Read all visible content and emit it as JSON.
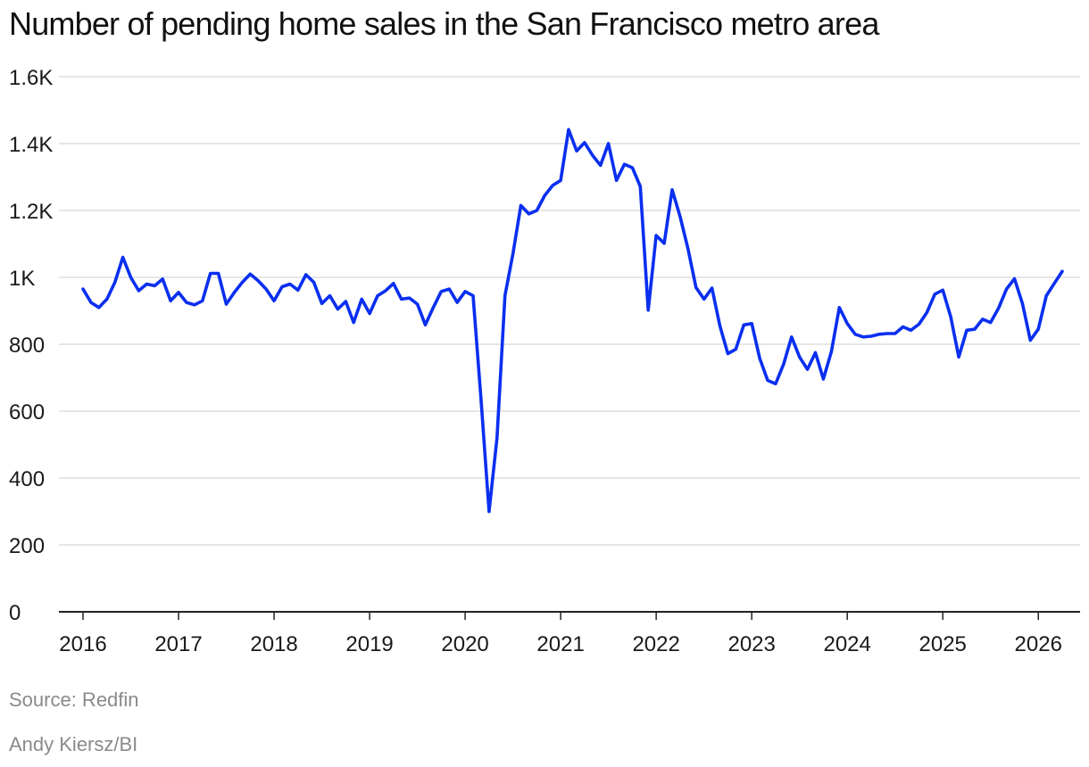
{
  "title": "Number of pending home sales in the San Francisco metro area",
  "source": "Source: Redfin",
  "credit": "Andy Kiersz/BI",
  "colors": {
    "line": "#0a2ff0",
    "grid": "#dddddd",
    "axis": "#222222"
  },
  "chart_data": {
    "type": "line",
    "title": "Number of pending home sales in the San Francisco metro area",
    "xlabel": "",
    "ylabel": "",
    "ylim": [
      0,
      1600
    ],
    "xlim": [
      "2016-01",
      "2026-04"
    ],
    "grid": true,
    "legend": "none",
    "y_ticks": [
      {
        "value": 0,
        "label": "0"
      },
      {
        "value": 200,
        "label": "200"
      },
      {
        "value": 400,
        "label": "400"
      },
      {
        "value": 600,
        "label": "600"
      },
      {
        "value": 800,
        "label": "800"
      },
      {
        "value": 1000,
        "label": "1K"
      },
      {
        "value": 1200,
        "label": "1.2K"
      },
      {
        "value": 1400,
        "label": "1.4K"
      },
      {
        "value": 1600,
        "label": "1.6K"
      }
    ],
    "x_ticks": [
      {
        "value": "2016-01",
        "label": "2016"
      },
      {
        "value": "2017-01",
        "label": "2017"
      },
      {
        "value": "2018-01",
        "label": "2018"
      },
      {
        "value": "2019-01",
        "label": "2019"
      },
      {
        "value": "2020-01",
        "label": "2020"
      },
      {
        "value": "2021-01",
        "label": "2021"
      },
      {
        "value": "2022-01",
        "label": "2022"
      },
      {
        "value": "2023-01",
        "label": "2023"
      },
      {
        "value": "2024-01",
        "label": "2024"
      },
      {
        "value": "2025-01",
        "label": "2025"
      },
      {
        "value": "2026-01",
        "label": "2026"
      }
    ],
    "series": [
      {
        "name": "",
        "points": [
          [
            "2016-01",
            965
          ],
          [
            "2016-02",
            925
          ],
          [
            "2016-03",
            910
          ],
          [
            "2016-04",
            935
          ],
          [
            "2016-05",
            985
          ],
          [
            "2016-06",
            1060
          ],
          [
            "2016-07",
            1000
          ],
          [
            "2016-08",
            960
          ],
          [
            "2016-09",
            980
          ],
          [
            "2016-10",
            975
          ],
          [
            "2016-11",
            995
          ],
          [
            "2016-12",
            930
          ],
          [
            "2017-01",
            955
          ],
          [
            "2017-02",
            925
          ],
          [
            "2017-03",
            918
          ],
          [
            "2017-04",
            930
          ],
          [
            "2017-05",
            1012
          ],
          [
            "2017-06",
            1012
          ],
          [
            "2017-07",
            920
          ],
          [
            "2017-08",
            955
          ],
          [
            "2017-09",
            985
          ],
          [
            "2017-10",
            1010
          ],
          [
            "2017-11",
            990
          ],
          [
            "2017-12",
            965
          ],
          [
            "2018-01",
            930
          ],
          [
            "2018-02",
            972
          ],
          [
            "2018-03",
            980
          ],
          [
            "2018-04",
            962
          ],
          [
            "2018-05",
            1008
          ],
          [
            "2018-06",
            985
          ],
          [
            "2018-07",
            922
          ],
          [
            "2018-08",
            945
          ],
          [
            "2018-09",
            905
          ],
          [
            "2018-10",
            928
          ],
          [
            "2018-11",
            865
          ],
          [
            "2018-12",
            935
          ],
          [
            "2019-01",
            892
          ],
          [
            "2019-02",
            945
          ],
          [
            "2019-03",
            960
          ],
          [
            "2019-04",
            982
          ],
          [
            "2019-05",
            935
          ],
          [
            "2019-06",
            938
          ],
          [
            "2019-07",
            920
          ],
          [
            "2019-08",
            858
          ],
          [
            "2019-09",
            910
          ],
          [
            "2019-10",
            958
          ],
          [
            "2019-11",
            965
          ],
          [
            "2019-12",
            925
          ],
          [
            "2020-01",
            958
          ],
          [
            "2020-02",
            945
          ],
          [
            "2020-03",
            635
          ],
          [
            "2020-04",
            300
          ],
          [
            "2020-05",
            520
          ],
          [
            "2020-06",
            945
          ],
          [
            "2020-07",
            1070
          ],
          [
            "2020-08",
            1215
          ],
          [
            "2020-09",
            1190
          ],
          [
            "2020-10",
            1200
          ],
          [
            "2020-11",
            1245
          ],
          [
            "2020-12",
            1275
          ],
          [
            "2021-01",
            1290
          ],
          [
            "2021-02",
            1442
          ],
          [
            "2021-03",
            1378
          ],
          [
            "2021-04",
            1403
          ],
          [
            "2021-05",
            1365
          ],
          [
            "2021-06",
            1335
          ],
          [
            "2021-07",
            1400
          ],
          [
            "2021-08",
            1290
          ],
          [
            "2021-09",
            1338
          ],
          [
            "2021-10",
            1328
          ],
          [
            "2021-11",
            1272
          ],
          [
            "2021-12",
            902
          ],
          [
            "2022-01",
            1125
          ],
          [
            "2022-02",
            1102
          ],
          [
            "2022-03",
            1262
          ],
          [
            "2022-04",
            1182
          ],
          [
            "2022-05",
            1085
          ],
          [
            "2022-06",
            970
          ],
          [
            "2022-07",
            935
          ],
          [
            "2022-08",
            968
          ],
          [
            "2022-09",
            855
          ],
          [
            "2022-10",
            772
          ],
          [
            "2022-11",
            785
          ],
          [
            "2022-12",
            858
          ],
          [
            "2023-01",
            862
          ],
          [
            "2023-02",
            758
          ],
          [
            "2023-03",
            692
          ],
          [
            "2023-04",
            682
          ],
          [
            "2023-05",
            740
          ],
          [
            "2023-06",
            822
          ],
          [
            "2023-07",
            762
          ],
          [
            "2023-08",
            725
          ],
          [
            "2023-09",
            775
          ],
          [
            "2023-10",
            696
          ],
          [
            "2023-11",
            778
          ],
          [
            "2023-12",
            910
          ],
          [
            "2024-01",
            862
          ],
          [
            "2024-02",
            830
          ],
          [
            "2024-03",
            822
          ],
          [
            "2024-04",
            824
          ],
          [
            "2024-05",
            830
          ],
          [
            "2024-06",
            832
          ],
          [
            "2024-07",
            832
          ],
          [
            "2024-08",
            852
          ],
          [
            "2024-09",
            842
          ],
          [
            "2024-10",
            860
          ],
          [
            "2024-11",
            895
          ],
          [
            "2024-12",
            950
          ],
          [
            "2025-01",
            962
          ],
          [
            "2025-02",
            882
          ],
          [
            "2025-03",
            762
          ],
          [
            "2025-04",
            842
          ],
          [
            "2025-05",
            845
          ],
          [
            "2025-06",
            875
          ],
          [
            "2025-07",
            865
          ],
          [
            "2025-08",
            908
          ],
          [
            "2025-09",
            965
          ],
          [
            "2025-10",
            996
          ],
          [
            "2025-11",
            922
          ],
          [
            "2025-12",
            812
          ],
          [
            "2026-01",
            845
          ],
          [
            "2026-02",
            945
          ],
          [
            "2026-03",
            982
          ],
          [
            "2026-04",
            1018
          ]
        ]
      }
    ]
  }
}
